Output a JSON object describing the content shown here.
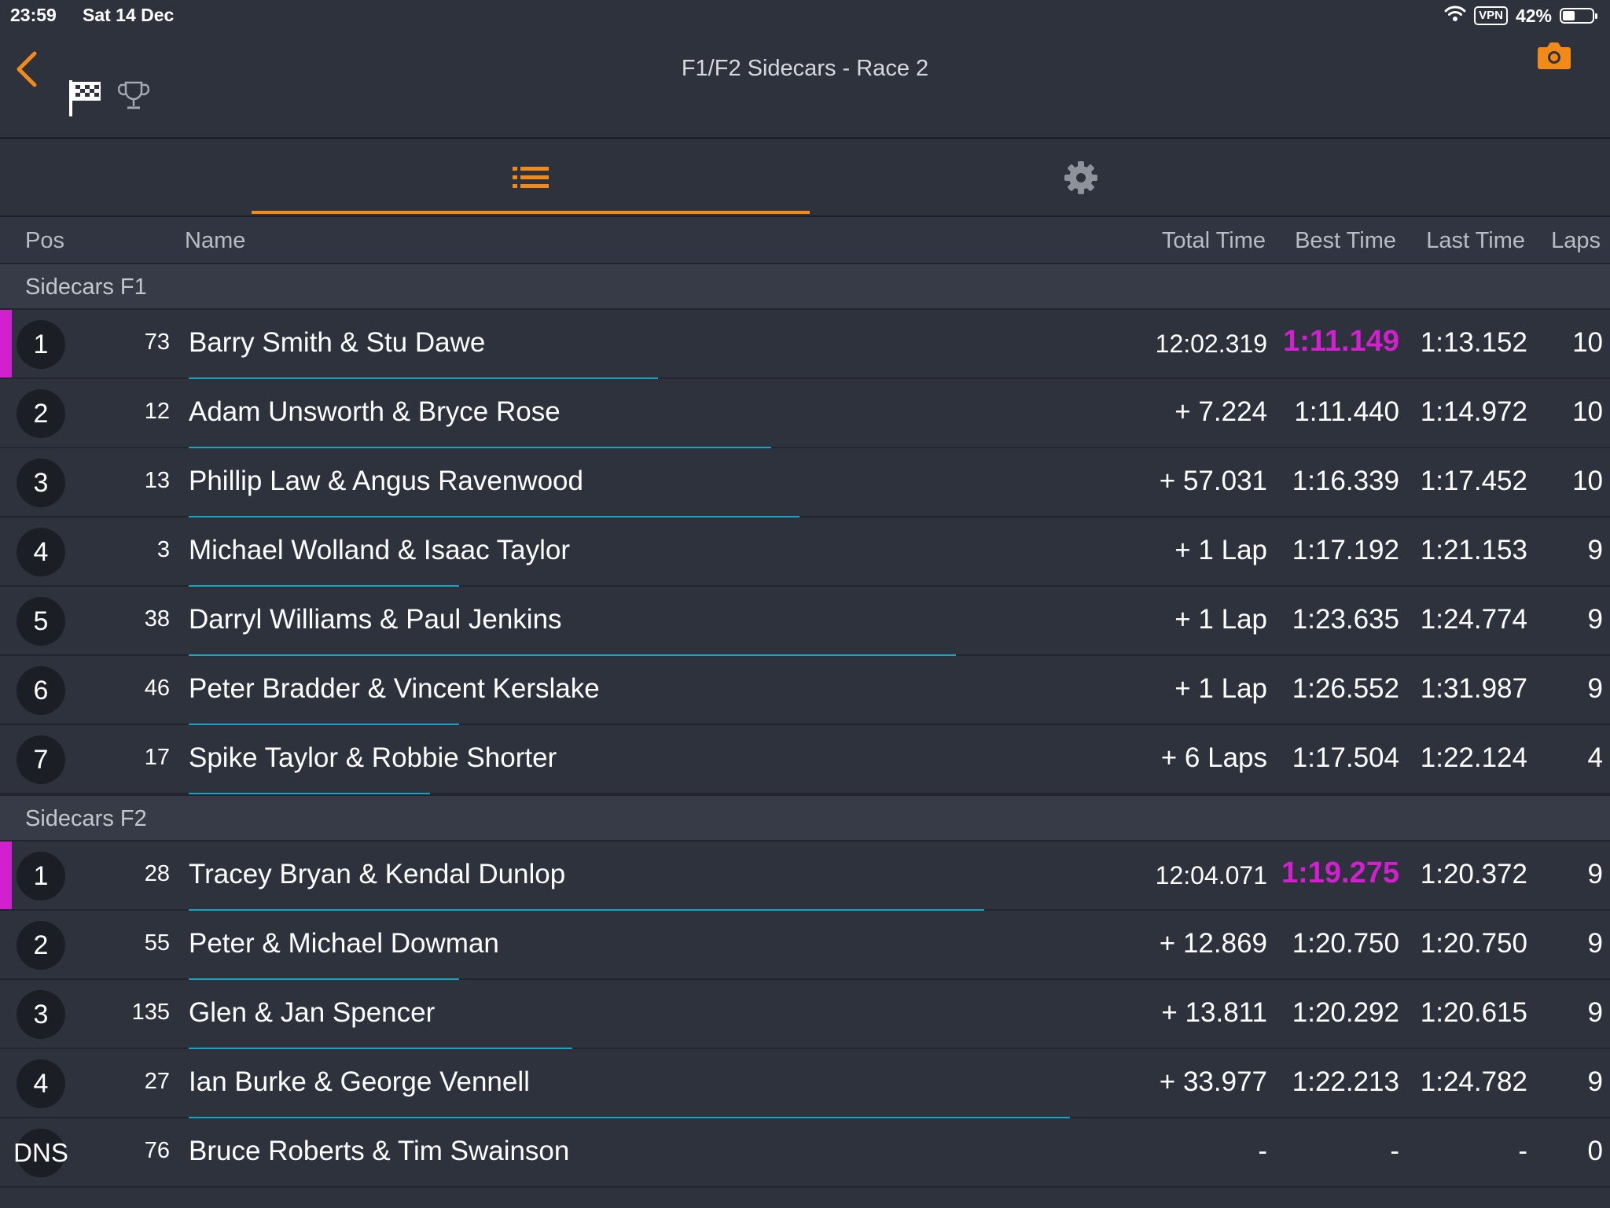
{
  "status": {
    "time": "23:59",
    "date": "Sat 14 Dec",
    "vpn": "VPN",
    "battery": "42%",
    "battery_level": 0.42
  },
  "header": {
    "title": "F1/F2 Sidecars - Race 2"
  },
  "columns": {
    "pos": "Pos",
    "name": "Name",
    "total": "Total Time",
    "best": "Best Time",
    "last": "Last Time",
    "laps": "Laps"
  },
  "groups": [
    {
      "label": "Sidecars F1",
      "rows": [
        {
          "pos": "1",
          "num": "73",
          "name": "Barry Smith & Stu Dawe",
          "total": "12:02.319",
          "best": "1:11.149",
          "last": "1:13.152",
          "laps": "10",
          "progress": 0.33
        },
        {
          "pos": "2",
          "num": "12",
          "name": "Adam Unsworth & Bryce Rose",
          "total": "+ 7.224",
          "best": "1:11.440",
          "last": "1:14.972",
          "laps": "10",
          "progress": 0.41
        },
        {
          "pos": "3",
          "num": "13",
          "name": "Phillip Law & Angus Ravenwood",
          "total": "+ 57.031",
          "best": "1:16.339",
          "last": "1:17.452",
          "laps": "10",
          "progress": 0.43
        },
        {
          "pos": "4",
          "num": "3",
          "name": "Michael Wolland & Isaac Taylor",
          "total": "+ 1 Lap",
          "best": "1:17.192",
          "last": "1:21.153",
          "laps": "9",
          "progress": 0.19
        },
        {
          "pos": "5",
          "num": "38",
          "name": "Darryl Williams & Paul Jenkins",
          "total": "+ 1 Lap",
          "best": "1:23.635",
          "last": "1:24.774",
          "laps": "9",
          "progress": 0.54
        },
        {
          "pos": "6",
          "num": "46",
          "name": "Peter Bradder & Vincent Kerslake",
          "total": "+ 1 Lap",
          "best": "1:26.552",
          "last": "1:31.987",
          "laps": "9",
          "progress": 0.19
        },
        {
          "pos": "7",
          "num": "17",
          "name": "Spike Taylor & Robbie Shorter",
          "total": "+ 6 Laps",
          "best": "1:17.504",
          "last": "1:22.124",
          "laps": "4",
          "progress": 0.17
        }
      ]
    },
    {
      "label": "Sidecars F2",
      "rows": [
        {
          "pos": "1",
          "num": "28",
          "name": "Tracey Bryan & Kendal Dunlop",
          "total": "12:04.071",
          "best": "1:19.275",
          "last": "1:20.372",
          "laps": "9",
          "progress": 0.56
        },
        {
          "pos": "2",
          "num": "55",
          "name": "Peter & Michael Dowman",
          "total": "+ 12.869",
          "best": "1:20.750",
          "last": "1:20.750",
          "laps": "9",
          "progress": 0.19
        },
        {
          "pos": "3",
          "num": "135",
          "name": "Glen & Jan Spencer",
          "total": "+ 13.811",
          "best": "1:20.292",
          "last": "1:20.615",
          "laps": "9",
          "progress": 0.27
        },
        {
          "pos": "4",
          "num": "27",
          "name": "Ian Burke & George Vennell",
          "total": "+ 33.977",
          "best": "1:22.213",
          "last": "1:24.782",
          "laps": "9",
          "progress": 0.62
        },
        {
          "pos": "DNS",
          "num": "76",
          "name": "Bruce Roberts & Tim Swainson",
          "total": "-",
          "best": "-",
          "last": "-",
          "laps": "0",
          "progress": 0
        }
      ]
    }
  ],
  "colors": {
    "accent": "#f28a1a",
    "fastest": "#d21fd0",
    "progress": "#17a4c4",
    "background": "#2d323c"
  },
  "icons": [
    "back-chevron-icon",
    "checkered-flag-icon",
    "trophy-icon",
    "camera-icon",
    "list-icon",
    "gear-icon",
    "wifi-icon",
    "battery-icon"
  ]
}
